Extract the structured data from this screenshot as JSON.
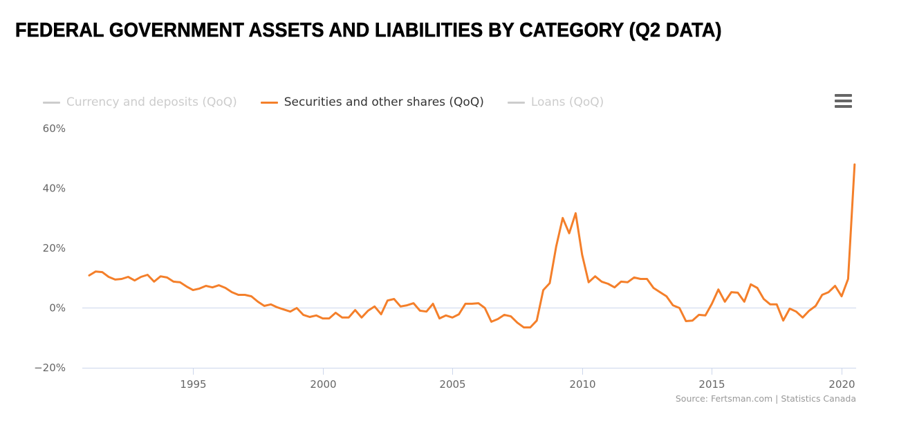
{
  "title": "FEDERAL GOVERNMENT ASSETS AND LIABILITIES BY CATEGORY (Q2 DATA)",
  "menu_icon": "hamburger-menu-icon",
  "source": "Source: Fertsman.com | Statistics Canada",
  "colors": {
    "series_active": "#f47f2a",
    "series_hidden": "#cccccc",
    "gridline": "#e6e6e6",
    "axis": "#ccd6eb",
    "text": "#666666"
  },
  "legend": [
    {
      "label": "Currency and deposits (QoQ)",
      "visible": false
    },
    {
      "label": "Securities and other shares (QoQ)",
      "visible": true
    },
    {
      "label": "Loans (QoQ)",
      "visible": false
    }
  ],
  "chart_data": {
    "type": "line",
    "title": "FEDERAL GOVERNMENT ASSETS AND LIABILITIES BY CATEGORY (Q2 DATA)",
    "xlabel": "",
    "ylabel": "",
    "x_start": 1991.0,
    "x_step": 0.25,
    "xlim": [
      1990.75,
      2020.6
    ],
    "ylim": [
      -20,
      60
    ],
    "y_ticks": [
      -20,
      0,
      20,
      40,
      60
    ],
    "y_tick_labels": [
      "−20%",
      "0%",
      "20%",
      "40%",
      "60%"
    ],
    "x_ticks": [
      1995,
      2000,
      2005,
      2010,
      2015,
      2020
    ],
    "x_tick_labels": [
      "1995",
      "2000",
      "2005",
      "2010",
      "2015",
      "2020"
    ],
    "legend_position": "top-left",
    "series": [
      {
        "name": "Securities and other shares (QoQ)",
        "values": [
          10.9,
          12.2,
          12.0,
          10.4,
          9.5,
          9.7,
          10.4,
          9.2,
          10.4,
          11.1,
          8.8,
          10.6,
          10.2,
          8.8,
          8.6,
          7.2,
          6.0,
          6.5,
          7.4,
          6.9,
          7.6,
          6.7,
          5.3,
          4.4,
          4.4,
          3.9,
          2.1,
          0.7,
          1.2,
          0.2,
          -0.5,
          -1.2,
          0.0,
          -2.3,
          -3.0,
          -2.5,
          -3.5,
          -3.5,
          -1.6,
          -3.2,
          -3.2,
          -0.7,
          -3.2,
          -0.9,
          0.5,
          -2.1,
          2.5,
          3.0,
          0.5,
          0.9,
          1.6,
          -0.9,
          -1.2,
          1.4,
          -3.5,
          -2.5,
          -3.2,
          -2.1,
          1.4,
          1.4,
          1.6,
          0.0,
          -4.6,
          -3.7,
          -2.3,
          -2.8,
          -4.9,
          -6.5,
          -6.5,
          -4.2,
          6.0,
          8.3,
          20.6,
          30.1,
          25.0,
          31.7,
          17.8,
          8.6,
          10.6,
          8.8,
          8.1,
          6.9,
          8.8,
          8.6,
          10.2,
          9.7,
          9.7,
          6.7,
          5.3,
          3.9,
          0.9,
          0.0,
          -4.4,
          -4.2,
          -2.3,
          -2.5,
          1.4,
          6.2,
          2.1,
          5.3,
          5.1,
          2.1,
          7.9,
          6.7,
          3.0,
          1.2,
          1.2,
          -4.2,
          -0.2,
          -1.2,
          -3.2,
          -0.9,
          0.7,
          4.4,
          5.3,
          7.4,
          3.9,
          9.7,
          48.0
        ]
      }
    ]
  }
}
